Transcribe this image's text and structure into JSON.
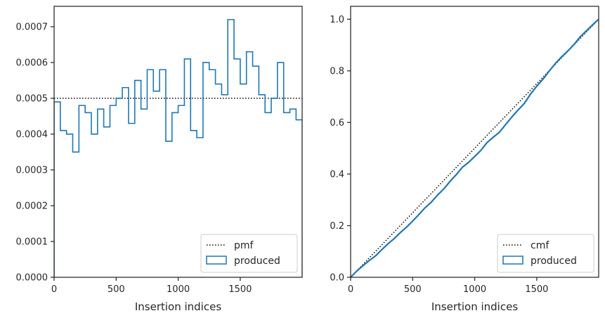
{
  "chart_data": [
    {
      "type": "histogram-step",
      "xlabel": "Insertion indices",
      "ylabel": "",
      "xlim": [
        0,
        1999
      ],
      "ylim": [
        0,
        0.000757
      ],
      "x_ticks": [
        0,
        500,
        1000,
        1500
      ],
      "y_ticks": [
        0,
        0.0001,
        0.0002,
        0.0003,
        0.0004,
        0.0005,
        0.0006,
        0.0007
      ],
      "y_tick_labels": [
        "0.0000",
        "0.0001",
        "0.0002",
        "0.0003",
        "0.0004",
        "0.0005",
        "0.0006",
        "0.0007"
      ],
      "bin_width": 50,
      "reference_line": {
        "name": "pmf",
        "value": 0.0005,
        "style": "dotted",
        "color": "#000000"
      },
      "series": [
        {
          "name": "produced",
          "color": "#1f77b4",
          "bin_edges_start": 0,
          "values": [
            0.00049,
            0.00041,
            0.0004,
            0.00035,
            0.00048,
            0.00046,
            0.0004,
            0.00047,
            0.00042,
            0.00048,
            0.0005,
            0.00053,
            0.00043,
            0.00055,
            0.00047,
            0.00058,
            0.00052,
            0.00058,
            0.00038,
            0.00046,
            0.00048,
            0.00061,
            0.00041,
            0.00039,
            0.0006,
            0.00058,
            0.00054,
            0.00051,
            0.00072,
            0.00061,
            0.00054,
            0.00063,
            0.00059,
            0.00051,
            0.00046,
            0.0005,
            0.0006,
            0.00046,
            0.00047,
            0.00044
          ]
        }
      ],
      "legend": {
        "placement": "lower-right",
        "entries": [
          "pmf",
          "produced"
        ]
      }
    },
    {
      "type": "line-step",
      "xlabel": "Insertion indices",
      "ylabel": "",
      "xlim": [
        0,
        1999
      ],
      "ylim": [
        0,
        1.05
      ],
      "x_ticks": [
        0,
        500,
        1000,
        1500
      ],
      "y_ticks": [
        0,
        0.2,
        0.4,
        0.6,
        0.8,
        1.0
      ],
      "y_tick_labels": [
        "0.0",
        "0.2",
        "0.4",
        "0.6",
        "0.8",
        "1.0"
      ],
      "reference_line": {
        "name": "cmf",
        "from": [
          0,
          0
        ],
        "to": [
          1999,
          1.0
        ],
        "style": "dotted",
        "color": "#000000"
      },
      "series": [
        {
          "name": "produced",
          "color": "#1f77b4",
          "x": [
            0,
            50,
            100,
            150,
            200,
            250,
            300,
            350,
            400,
            450,
            500,
            550,
            600,
            650,
            700,
            750,
            800,
            850,
            900,
            950,
            1000,
            1050,
            1100,
            1150,
            1200,
            1250,
            1300,
            1350,
            1400,
            1450,
            1500,
            1550,
            1600,
            1650,
            1700,
            1750,
            1800,
            1850,
            1900,
            1950,
            2000
          ],
          "values": [
            0,
            0.0245,
            0.045,
            0.065,
            0.0825,
            0.1065,
            0.1295,
            0.1495,
            0.173,
            0.194,
            0.218,
            0.243,
            0.2695,
            0.291,
            0.3185,
            0.342,
            0.371,
            0.397,
            0.426,
            0.445,
            0.468,
            0.492,
            0.5225,
            0.543,
            0.5625,
            0.5925,
            0.6215,
            0.6485,
            0.674,
            0.71,
            0.7405,
            0.7675,
            0.799,
            0.8285,
            0.854,
            0.877,
            0.902,
            0.932,
            0.955,
            0.9785,
            1.0
          ]
        }
      ],
      "legend": {
        "placement": "lower-right",
        "entries": [
          "cmf",
          "produced"
        ]
      }
    }
  ]
}
